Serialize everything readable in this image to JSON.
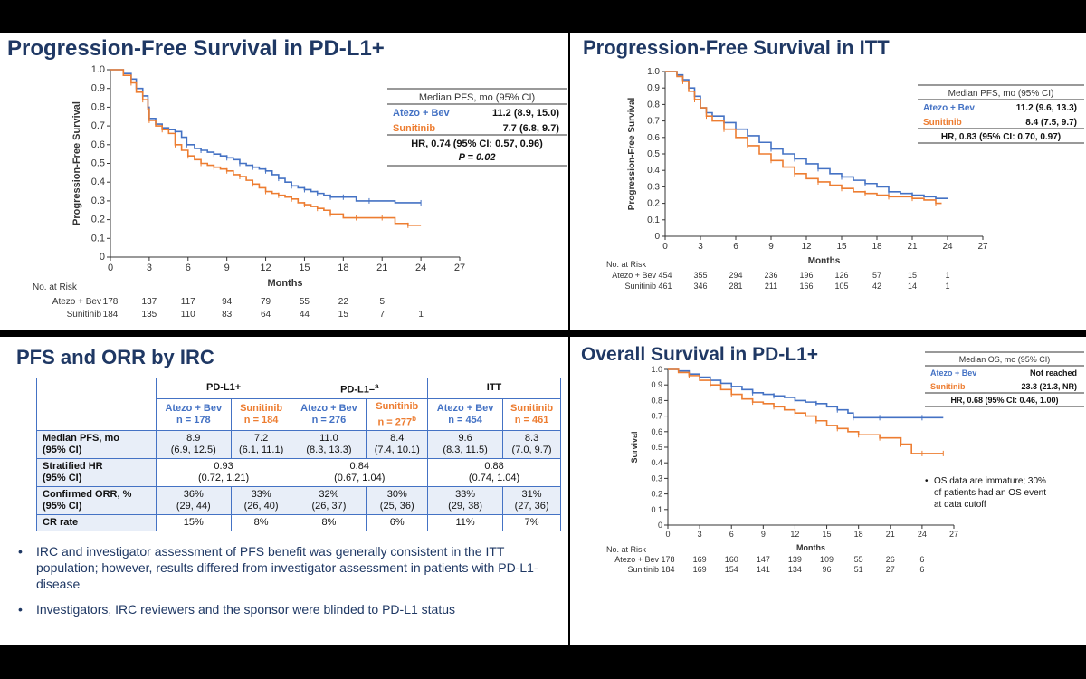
{
  "colors": {
    "atezo": "#4472c4",
    "sunitinib": "#ed7d31",
    "title": "#1f3864"
  },
  "panels": {
    "pfs_pdl1": {
      "title": "Progression-Free Survival in PD-L1+",
      "legend": {
        "header": "Median PFS, mo (95% CI)",
        "arm1_label": "Atezo + Bev",
        "arm1_value": "11.2 (8.9, 15.0)",
        "arm2_label": "Sunitinib",
        "arm2_value": "7.7 (6.8, 9.7)",
        "hr": "HR, 0.74 (95% CI: 0.57, 0.96)",
        "p": "P = 0.02"
      },
      "at_risk": {
        "label": "No. at Risk",
        "arm1": "Atezo + Bev",
        "arm2": "Sunitinib",
        "arm1_values": [
          "178",
          "137",
          "117",
          "94",
          "79",
          "55",
          "22",
          "5",
          ""
        ],
        "arm2_values": [
          "184",
          "135",
          "110",
          "83",
          "64",
          "44",
          "15",
          "7",
          "1"
        ]
      }
    },
    "pfs_itt": {
      "title": "Progression-Free Survival in ITT",
      "legend": {
        "header": "Median PFS, mo (95% CI)",
        "arm1_label": "Atezo + Bev",
        "arm1_value": "11.2 (9.6, 13.3)",
        "arm2_label": "Sunitinib",
        "arm2_value": "8.4 (7.5, 9.7)",
        "hr": "HR, 0.83 (95% CI: 0.70, 0.97)"
      },
      "at_risk": {
        "label": "No. at Risk",
        "arm1": "Atezo + Bev",
        "arm2": "Sunitinib",
        "arm1_values": [
          "454",
          "355",
          "294",
          "236",
          "196",
          "126",
          "57",
          "15",
          "1"
        ],
        "arm2_values": [
          "461",
          "346",
          "281",
          "211",
          "166",
          "105",
          "42",
          "14",
          "1"
        ]
      }
    },
    "irc": {
      "title": "PFS and ORR by IRC",
      "groups": [
        "PD-L1+",
        "PD-L1–",
        "ITT"
      ],
      "group2_sup": "a",
      "arms": [
        "Atezo + Bev",
        "Sunitinib",
        "Atezo + Bev",
        "Sunitinib",
        "Atezo + Bev",
        "Sunitinib"
      ],
      "ns": [
        "n = 178",
        "n = 184",
        "n = 276",
        "n = 277",
        "n = 454",
        "n = 461"
      ],
      "n4_sup": "b",
      "rows": [
        {
          "label1": "Median PFS, mo",
          "label2": "(95% CI)",
          "cells": [
            [
              "8.9",
              "(6.9, 12.5)"
            ],
            [
              "7.2",
              "(6.1, 11.1)"
            ],
            [
              "11.0",
              "(8.3, 13.3)"
            ],
            [
              "8.4",
              "(7.4, 10.1)"
            ],
            [
              "9.6",
              "(8.3, 11.5)"
            ],
            [
              "8.3",
              "(7.0, 9.7)"
            ]
          ]
        },
        {
          "label1": "Stratified HR",
          "label2": "(95% CI)",
          "merged": [
            [
              "0.93",
              "(0.72, 1.21)"
            ],
            [
              "0.84",
              "(0.67, 1.04)"
            ],
            [
              "0.88",
              "(0.74, 1.04)"
            ]
          ]
        },
        {
          "label1": "Confirmed ORR, %",
          "label2": "(95% CI)",
          "cells": [
            [
              "36%",
              "(29, 44)"
            ],
            [
              "33%",
              "(26, 40)"
            ],
            [
              "32%",
              "(26, 37)"
            ],
            [
              "30%",
              "(25, 36)"
            ],
            [
              "33%",
              "(29, 38)"
            ],
            [
              "31%",
              "(27, 36)"
            ]
          ]
        },
        {
          "label1": "CR rate",
          "label2": "",
          "cells": [
            [
              "15%",
              ""
            ],
            [
              "8%",
              ""
            ],
            [
              "8%",
              ""
            ],
            [
              "6%",
              ""
            ],
            [
              "11%",
              ""
            ],
            [
              "7%",
              ""
            ]
          ]
        }
      ],
      "bullets": [
        "IRC and investigator assessment of PFS benefit was generally consistent in the ITT population; however, results differed from investigator assessment in patients with PD-L1- disease",
        "Investigators, IRC reviewers and the sponsor were blinded to PD-L1 status"
      ]
    },
    "os_pdl1": {
      "title": "Overall Survival in PD-L1+",
      "legend": {
        "header": "Median OS, mo (95% CI)",
        "arm1_label": "Atezo + Bev",
        "arm1_value": "Not reached",
        "arm2_label": "Sunitinib",
        "arm2_value": "23.3 (21.3, NR)",
        "hr": "HR, 0.68 (95% CI: 0.46, 1.00)"
      },
      "note": [
        "OS data are immature; 30%",
        "of patients had an OS event",
        "at data cutoff"
      ],
      "at_risk": {
        "label": "No. at Risk",
        "arm1": "Atezo + Bev",
        "arm2": "Sunitinib",
        "arm1_values": [
          "178",
          "169",
          "160",
          "147",
          "139",
          "109",
          "55",
          "26",
          "6"
        ],
        "arm2_values": [
          "184",
          "169",
          "154",
          "141",
          "134",
          "96",
          "51",
          "27",
          "6"
        ]
      }
    }
  },
  "chart_data": [
    {
      "type": "line",
      "title": "Progression-Free Survival in PD-L1+",
      "xlabel": "Months",
      "ylabel": "Progression-Free Survival",
      "xlim": [
        0,
        27
      ],
      "ylim": [
        0,
        1.0
      ],
      "xticks": [
        "0",
        "3",
        "6",
        "9",
        "12",
        "15",
        "18",
        "21",
        "24",
        "27"
      ],
      "yticks": [
        "0",
        "0.1",
        "0.2",
        "0.3",
        "0.4",
        "0.5",
        "0.6",
        "0.7",
        "0.8",
        "0.9",
        "1.0"
      ],
      "series": [
        {
          "name": "Atezo + Bev",
          "x": [
            0,
            1,
            1.6,
            2,
            2.5,
            2.9,
            3,
            3.5,
            4,
            4.5,
            5,
            5.5,
            5.9,
            6.5,
            7,
            7.5,
            8,
            8.5,
            9,
            9.5,
            10,
            10.5,
            11,
            11.5,
            12,
            12.5,
            13,
            13.5,
            14,
            14.5,
            15,
            15.5,
            16,
            16.5,
            17,
            17.5,
            18,
            19,
            20,
            21,
            22,
            23,
            24
          ],
          "y": [
            1.0,
            0.98,
            0.95,
            0.9,
            0.86,
            0.8,
            0.74,
            0.71,
            0.69,
            0.68,
            0.67,
            0.64,
            0.6,
            0.58,
            0.57,
            0.56,
            0.55,
            0.54,
            0.53,
            0.52,
            0.5,
            0.49,
            0.48,
            0.47,
            0.46,
            0.44,
            0.42,
            0.4,
            0.38,
            0.37,
            0.36,
            0.35,
            0.34,
            0.33,
            0.32,
            0.32,
            0.32,
            0.3,
            0.3,
            0.3,
            0.29,
            0.29,
            0.29
          ]
        },
        {
          "name": "Sunitinib",
          "x": [
            0,
            1,
            1.6,
            2,
            2.5,
            2.9,
            3,
            3.5,
            4,
            4.5,
            5,
            5.5,
            6,
            6.5,
            7,
            7.5,
            8,
            8.5,
            9,
            9.5,
            10,
            10.5,
            11,
            11.5,
            12,
            12.5,
            13,
            13.5,
            14,
            14.5,
            15,
            15.5,
            16,
            16.5,
            17,
            18,
            19,
            20,
            21,
            22,
            23,
            24
          ],
          "y": [
            1.0,
            0.97,
            0.93,
            0.88,
            0.84,
            0.79,
            0.73,
            0.7,
            0.68,
            0.66,
            0.6,
            0.57,
            0.54,
            0.52,
            0.5,
            0.49,
            0.48,
            0.47,
            0.46,
            0.44,
            0.43,
            0.41,
            0.39,
            0.37,
            0.35,
            0.34,
            0.33,
            0.32,
            0.31,
            0.29,
            0.28,
            0.27,
            0.26,
            0.25,
            0.23,
            0.21,
            0.21,
            0.21,
            0.21,
            0.18,
            0.17,
            0.17
          ]
        }
      ]
    },
    {
      "type": "line",
      "title": "Progression-Free Survival in ITT",
      "xlabel": "Months",
      "ylabel": "Progression-Free Survival",
      "xlim": [
        0,
        27
      ],
      "ylim": [
        0,
        1.0
      ],
      "xticks": [
        "0",
        "3",
        "6",
        "9",
        "12",
        "15",
        "18",
        "21",
        "24",
        "27"
      ],
      "yticks": [
        "0",
        "0.1",
        "0.2",
        "0.3",
        "0.4",
        "0.5",
        "0.6",
        "0.7",
        "0.8",
        "0.9",
        "1.0"
      ],
      "series": [
        {
          "name": "Atezo + Bev",
          "x": [
            0,
            1,
            1.5,
            2,
            2.5,
            3,
            3.5,
            4,
            5,
            6,
            7,
            8,
            9,
            10,
            11,
            12,
            13,
            14,
            15,
            16,
            17,
            18,
            19,
            20,
            21,
            22,
            23,
            24
          ],
          "y": [
            1.0,
            0.98,
            0.95,
            0.9,
            0.85,
            0.78,
            0.75,
            0.73,
            0.69,
            0.65,
            0.61,
            0.57,
            0.53,
            0.5,
            0.47,
            0.44,
            0.41,
            0.38,
            0.36,
            0.34,
            0.32,
            0.3,
            0.27,
            0.26,
            0.25,
            0.24,
            0.23,
            0.23
          ]
        },
        {
          "name": "Sunitinib",
          "x": [
            0,
            1,
            1.5,
            2,
            2.5,
            3,
            3.5,
            4,
            5,
            6,
            7,
            8,
            9,
            10,
            11,
            12,
            13,
            14,
            15,
            16,
            17,
            18,
            19,
            20,
            21,
            22,
            23,
            23.5
          ],
          "y": [
            1.0,
            0.97,
            0.94,
            0.88,
            0.83,
            0.78,
            0.73,
            0.7,
            0.65,
            0.6,
            0.55,
            0.5,
            0.46,
            0.42,
            0.38,
            0.35,
            0.33,
            0.31,
            0.29,
            0.27,
            0.26,
            0.25,
            0.24,
            0.24,
            0.23,
            0.22,
            0.2,
            0.2
          ]
        }
      ]
    },
    {
      "type": "line",
      "title": "Overall Survival in PD-L1+",
      "xlabel": "Months",
      "ylabel": "Survival",
      "xlim": [
        0,
        27
      ],
      "ylim": [
        0,
        1.0
      ],
      "xticks": [
        "0",
        "3",
        "6",
        "9",
        "12",
        "15",
        "18",
        "21",
        "24",
        "27"
      ],
      "yticks": [
        "0",
        "0.1",
        "0.2",
        "0.3",
        "0.4",
        "0.5",
        "0.6",
        "0.7",
        "0.8",
        "0.9",
        "1.0"
      ],
      "series": [
        {
          "name": "Atezo + Bev",
          "x": [
            0,
            1,
            2,
            3,
            4,
            5,
            6,
            7,
            8,
            9,
            10,
            11,
            12,
            13,
            14,
            15,
            16,
            17,
            17.5,
            18,
            20,
            22,
            24,
            26
          ],
          "y": [
            1.0,
            0.99,
            0.97,
            0.95,
            0.93,
            0.91,
            0.89,
            0.87,
            0.85,
            0.84,
            0.83,
            0.82,
            0.8,
            0.79,
            0.78,
            0.76,
            0.74,
            0.72,
            0.69,
            0.69,
            0.69,
            0.69,
            0.69,
            0.69
          ]
        },
        {
          "name": "Sunitinib",
          "x": [
            0,
            1,
            2,
            3,
            4,
            5,
            6,
            7,
            8,
            9,
            10,
            11,
            12,
            13,
            14,
            15,
            16,
            17,
            18,
            19,
            20,
            21,
            22,
            23,
            24,
            25,
            26
          ],
          "y": [
            1.0,
            0.98,
            0.96,
            0.93,
            0.9,
            0.87,
            0.84,
            0.81,
            0.79,
            0.78,
            0.76,
            0.74,
            0.72,
            0.7,
            0.67,
            0.64,
            0.62,
            0.6,
            0.58,
            0.58,
            0.56,
            0.56,
            0.52,
            0.46,
            0.46,
            0.46,
            0.46
          ]
        }
      ]
    }
  ]
}
